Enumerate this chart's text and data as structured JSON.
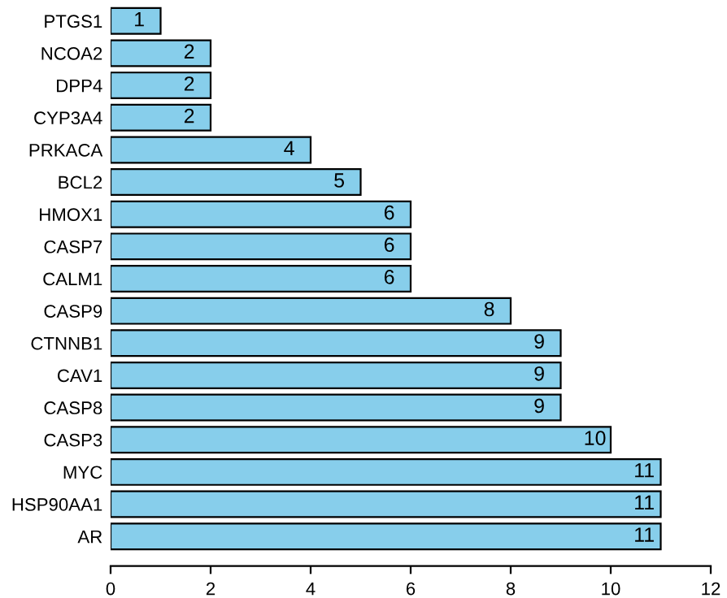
{
  "chart_data": {
    "type": "bar",
    "orientation": "horizontal",
    "categories": [
      "PTGS1",
      "NCOA2",
      "DPP4",
      "CYP3A4",
      "PRKACA",
      "BCL2",
      "HMOX1",
      "CASP7",
      "CALM1",
      "CASP9",
      "CTNNB1",
      "CAV1",
      "CASP8",
      "CASP3",
      "MYC",
      "HSP90AA1",
      "AR"
    ],
    "values": [
      1,
      2,
      2,
      2,
      4,
      5,
      6,
      6,
      6,
      8,
      9,
      9,
      9,
      10,
      11,
      11,
      11
    ],
    "color": "#87ceeb",
    "xlim": [
      0,
      12
    ],
    "xticks": [
      0,
      2,
      4,
      6,
      8,
      10,
      12
    ],
    "data_labels": true,
    "grid": false,
    "legend": false
  }
}
